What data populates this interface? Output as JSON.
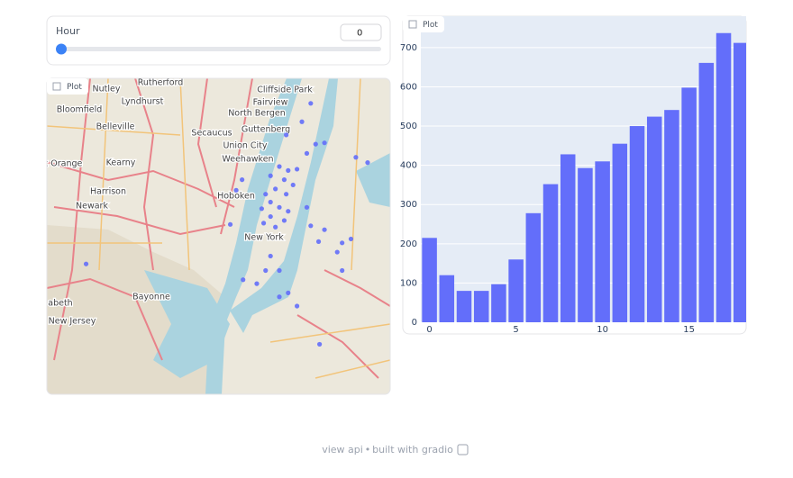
{
  "slider": {
    "label": "Hour",
    "value": 0
  },
  "map_plot": {
    "label": "Plot",
    "xlim": [
      -74.23,
      -73.88
    ],
    "ylim": [
      40.62,
      40.86
    ],
    "places": [
      "Nutley",
      "Rutherford",
      "Cliffside Park",
      "Lyndhurst",
      "Fairview",
      "Bloomfield",
      "North Bergen",
      "Belleville",
      "Guttenberg",
      "Secaucus",
      "Union City",
      "Kearny",
      "Weehawken",
      "st Orange",
      "Harrison",
      "Hoboken",
      "Newark",
      "New York",
      "Bayonne",
      "abeth",
      "New Jersey"
    ],
    "color": "#636efa",
    "points": [
      {
        "lon": -73.961,
        "lat": 40.841
      },
      {
        "lon": -73.97,
        "lat": 40.827
      },
      {
        "lon": -73.956,
        "lat": 40.81
      },
      {
        "lon": -73.947,
        "lat": 40.811
      },
      {
        "lon": -73.986,
        "lat": 40.817
      },
      {
        "lon": -73.965,
        "lat": 40.803
      },
      {
        "lon": -73.993,
        "lat": 40.793
      },
      {
        "lon": -73.984,
        "lat": 40.79
      },
      {
        "lon": -73.975,
        "lat": 40.791
      },
      {
        "lon": -74.002,
        "lat": 40.786
      },
      {
        "lon": -73.988,
        "lat": 40.783
      },
      {
        "lon": -73.979,
        "lat": 40.779
      },
      {
        "lon": -73.997,
        "lat": 40.776
      },
      {
        "lon": -74.007,
        "lat": 40.772
      },
      {
        "lon": -73.986,
        "lat": 40.772
      },
      {
        "lon": -74.002,
        "lat": 40.766
      },
      {
        "lon": -73.993,
        "lat": 40.762
      },
      {
        "lon": -74.011,
        "lat": 40.761
      },
      {
        "lon": -73.984,
        "lat": 40.759
      },
      {
        "lon": -74.002,
        "lat": 40.755
      },
      {
        "lon": -74.009,
        "lat": 40.75
      },
      {
        "lon": -73.997,
        "lat": 40.747
      },
      {
        "lon": -73.988,
        "lat": 40.752
      },
      {
        "lon": -73.965,
        "lat": 40.762
      },
      {
        "lon": -73.961,
        "lat": 40.748
      },
      {
        "lon": -73.947,
        "lat": 40.745
      },
      {
        "lon": -73.929,
        "lat": 40.735
      },
      {
        "lon": -73.92,
        "lat": 40.738
      },
      {
        "lon": -73.934,
        "lat": 40.728
      },
      {
        "lon": -73.953,
        "lat": 40.736
      },
      {
        "lon": -74.002,
        "lat": 40.725
      },
      {
        "lon": -73.993,
        "lat": 40.714
      },
      {
        "lon": -74.007,
        "lat": 40.714
      },
      {
        "lon": -74.016,
        "lat": 40.704
      },
      {
        "lon": -73.984,
        "lat": 40.697
      },
      {
        "lon": -73.975,
        "lat": 40.687
      },
      {
        "lon": -73.993,
        "lat": 40.694
      },
      {
        "lon": -74.03,
        "lat": 40.707
      },
      {
        "lon": -74.043,
        "lat": 40.749
      },
      {
        "lon": -74.037,
        "lat": 40.775
      },
      {
        "lon": -74.19,
        "lat": 40.719
      },
      {
        "lon": -73.952,
        "lat": 40.658
      },
      {
        "lon": -73.915,
        "lat": 40.8
      },
      {
        "lon": -73.903,
        "lat": 40.796
      },
      {
        "lon": -74.031,
        "lat": 40.783
      },
      {
        "lon": -73.929,
        "lat": 40.714
      }
    ]
  },
  "bar_plot": {
    "label": "Plot",
    "type": "bar",
    "x": [
      0,
      1,
      2,
      3,
      4,
      5,
      6,
      7,
      8,
      9,
      10,
      11,
      12,
      13,
      14,
      15,
      16,
      17,
      18
    ],
    "values": [
      215,
      120,
      80,
      80,
      97,
      160,
      278,
      352,
      428,
      393,
      410,
      455,
      500,
      524,
      541,
      598,
      661,
      737,
      712
    ],
    "color": "#636efa",
    "xlim": [
      -0.5,
      18.3
    ],
    "ylim": [
      0,
      780
    ],
    "xticks": [
      0,
      5,
      10,
      15
    ],
    "yticks": [
      0,
      100,
      200,
      300,
      400,
      500,
      600,
      700
    ],
    "grid": true
  },
  "footer": {
    "api": "view api",
    "separator": "•",
    "built": "built with gradio"
  }
}
